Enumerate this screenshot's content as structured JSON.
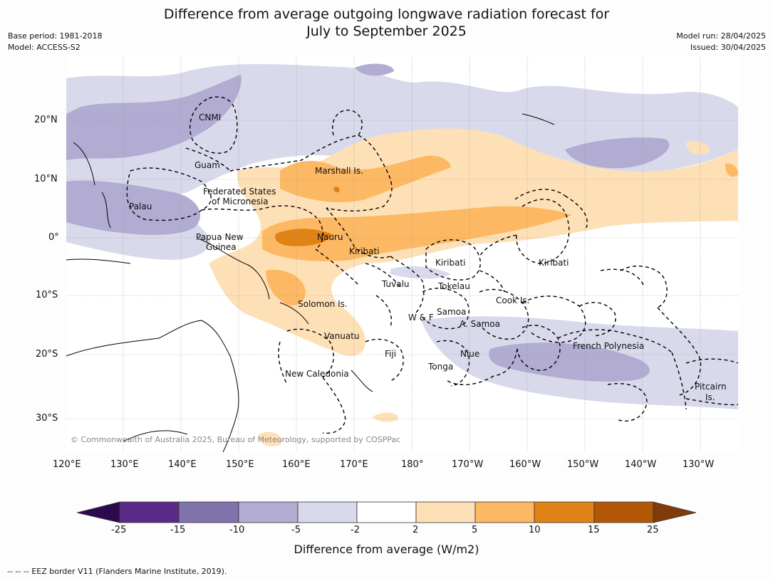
{
  "title_line1": "Difference from average outgoing longwave radiation forecast for",
  "title_line2": "July to September 2025",
  "meta": {
    "base_period": "Base period: 1981-2018",
    "model": "Model: ACCESS-S2",
    "model_run": "Model run: 28/04/2025",
    "issued": "Issued: 30/04/2025"
  },
  "map": {
    "lon_ticks": [
      "120°E",
      "130°E",
      "140°E",
      "150°E",
      "160°E",
      "170°E",
      "180°",
      "170°W",
      "160°W",
      "150°W",
      "140°W",
      "130°W"
    ],
    "lat_ticks": [
      "20°N",
      "10°N",
      "0°",
      "10°S",
      "20°S",
      "30°S"
    ],
    "copyright": "© Commonwealth of Australia 2025, Bureau of Meteorology, supported by COSPPac",
    "places": {
      "cnmi": "CNMI",
      "guam": "Guam",
      "marshall": "Marshall Is.",
      "fsm1": "Federated States",
      "fsm2": "of Micronesia",
      "palau": "Palau",
      "png1": "Papua New",
      "png2": "Guinea",
      "nauru": "Nauru",
      "kiribati_w": "Kiribati",
      "kiribati_c": "Kiribati",
      "kiribati_e": "Kiribati",
      "tuvalu": "Tuvalu",
      "tokelau": "Tokelau",
      "cook": "Cook Is.",
      "solomon": "Solomon Is.",
      "wf": "W & F",
      "samoa": "Samoa",
      "asamoa": "A. Samoa",
      "vanuatu": "Vanuatu",
      "fiji": "Fiji",
      "niue": "Niue",
      "tonga": "Tonga",
      "frpoly": "French Polynesia",
      "newcal": "New Caledonia",
      "pitcairn1": "Pitcairn",
      "pitcairn2": "Is."
    }
  },
  "colorbar": {
    "ticks": [
      "-25",
      "-15",
      "-10",
      "-5",
      "-2",
      "2",
      "5",
      "10",
      "15",
      "25"
    ],
    "colors": {
      "lt_neg25": "#2d0a4e",
      "n25_n15": "#5b2a86",
      "n15_n10": "#8073ac",
      "n10_n5": "#b2abd2",
      "n5_n2": "#d8daeb",
      "n2_2": "#ffffff",
      "p2_5": "#fee0b6",
      "p5_10": "#fdb863",
      "p10_15": "#e08214",
      "p15_25": "#b35806",
      "gt25": "#7f3b08"
    },
    "label": "Difference from average (W/m2)"
  },
  "footnote": "--  --  -- EEZ border V11 (Flanders Marine Institute, 2019)."
}
